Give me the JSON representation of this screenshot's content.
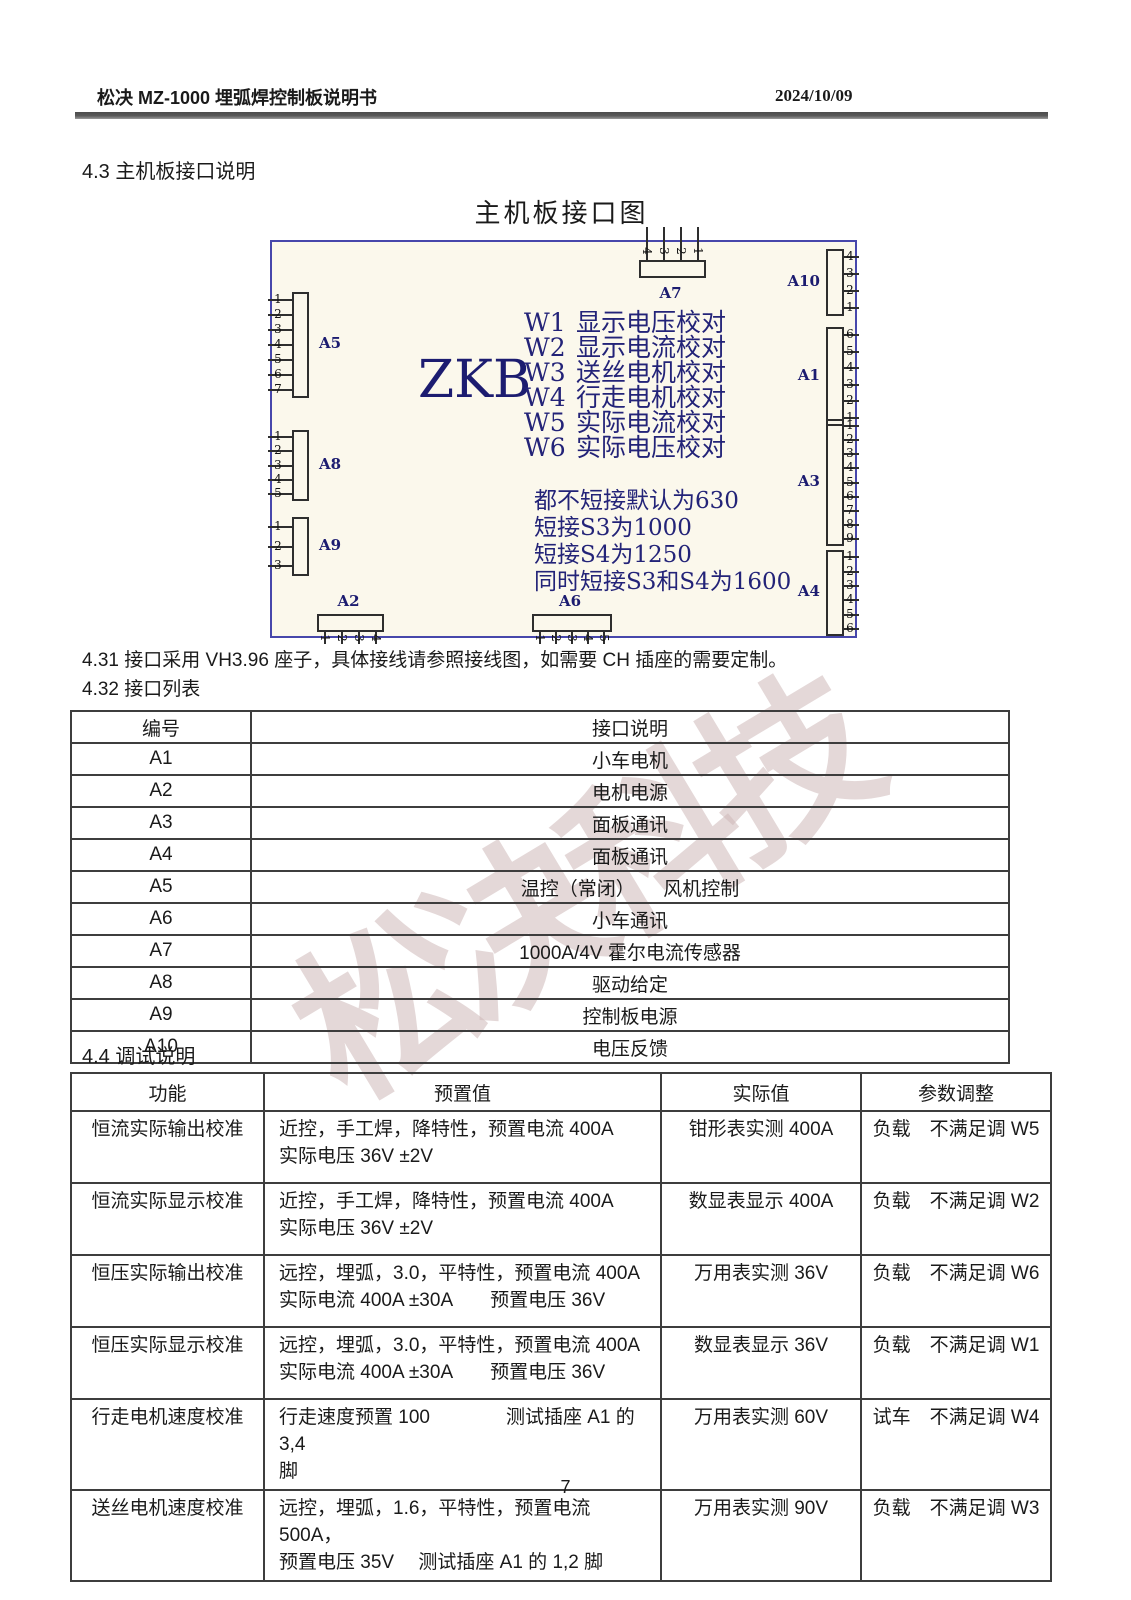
{
  "header": {
    "title": "松决 MZ-1000 埋弧焊控制板说明书",
    "date": "2024/10/09"
  },
  "sections": {
    "s43": "4.3 主机板接口说明",
    "s431": "4.31 接口采用 VH3.96 座子，具体接线请参照接线图，如需要 CH 插座的需要定制。",
    "s432": "4.32 接口列表",
    "s44": "4.4 调试说明"
  },
  "diagram": {
    "title": "主机板接口图",
    "board_label": "ZKB",
    "w_list": [
      {
        "id": "W1",
        "desc": "显示电压校对"
      },
      {
        "id": "W2",
        "desc": "显示电流校对"
      },
      {
        "id": "W3",
        "desc": "送丝电机校对"
      },
      {
        "id": "W4",
        "desc": "行走电机校对"
      },
      {
        "id": "W5",
        "desc": "实际电流校对"
      },
      {
        "id": "W6",
        "desc": "实际电压校对"
      }
    ],
    "jumper_notes": [
      "都不短接默认为630",
      "短接S3为1000",
      "短接S4为1250",
      "同时短接S3和S4为1600"
    ],
    "connectors": [
      {
        "id": "A5",
        "side": "left",
        "pins": [
          "1",
          "2",
          "3",
          "4",
          "5",
          "6",
          "7"
        ]
      },
      {
        "id": "A8",
        "side": "left",
        "pins": [
          "1",
          "2",
          "3",
          "4",
          "5"
        ]
      },
      {
        "id": "A9",
        "side": "left",
        "pins": [
          "1",
          "2",
          "3"
        ]
      },
      {
        "id": "A7",
        "side": "top",
        "pins": [
          "4",
          "3",
          "2",
          "1"
        ]
      },
      {
        "id": "A10",
        "side": "right",
        "pins": [
          "4",
          "3",
          "2",
          "1"
        ]
      },
      {
        "id": "A1",
        "side": "right",
        "pins": [
          "6",
          "5",
          "4",
          "3",
          "2",
          "1"
        ]
      },
      {
        "id": "A3",
        "side": "right",
        "pins": [
          "1",
          "2",
          "3",
          "4",
          "5",
          "6",
          "7",
          "8",
          "9"
        ]
      },
      {
        "id": "A4",
        "side": "right",
        "pins": [
          "1",
          "2",
          "3",
          "4",
          "5",
          "6"
        ]
      },
      {
        "id": "A2",
        "side": "bottom",
        "pins": [
          "1",
          "2",
          "3",
          "4"
        ]
      },
      {
        "id": "A6",
        "side": "bottom",
        "pins": [
          "1",
          "2",
          "3",
          "4",
          "5"
        ]
      }
    ]
  },
  "interface_table": {
    "headers": [
      "编号",
      "接口说明"
    ],
    "rows": [
      [
        "A1",
        "小车电机"
      ],
      [
        "A2",
        "电机电源"
      ],
      [
        "A3",
        "面板通讯"
      ],
      [
        "A4",
        "面板通讯"
      ],
      [
        "A5",
        "温控（常闭）　　风机控制"
      ],
      [
        "A6",
        "小车通讯"
      ],
      [
        "A7",
        "1000A/4V 霍尔电流传感器"
      ],
      [
        "A8",
        "驱动给定"
      ],
      [
        "A9",
        "控制板电源"
      ],
      [
        "A10",
        "电压反馈"
      ]
    ]
  },
  "debug_table": {
    "headers": [
      "功能",
      "预置值",
      "实际值",
      "参数调整"
    ],
    "rows": [
      [
        "恒流实际输出校准",
        "近控，手工焊，降特性，预置电流 400A\n实际电压 36V ±2V",
        "钳形表实测 400A",
        "负载　不满足调 W5"
      ],
      [
        "恒流实际显示校准",
        "近控，手工焊，降特性，预置电流 400A\n实际电压 36V ±2V",
        "数显表显示 400A",
        "负载　不满足调 W2"
      ],
      [
        "恒压实际输出校准",
        "远控，埋弧，3.0，平特性，预置电流 400A\n实际电流 400A ±30A　　预置电压 36V",
        "万用表实测 36V",
        "负载　不满足调 W6"
      ],
      [
        "恒压实际显示校准",
        "远控，埋弧，3.0，平特性，预置电流 400A\n实际电流 400A ±30A　　预置电压 36V",
        "数显表显示 36V",
        "负载　不满足调 W1"
      ],
      [
        "行走电机速度校准",
        "行走速度预置 100　　　　测试插座 A1 的 3,4\n脚",
        "万用表实测 60V",
        "试车　不满足调 W4"
      ],
      [
        "送丝电机速度校准",
        "远控，埋弧，1.6，平特性，预置电流 500A，\n预置电压 35V　 测试插座 A1 的 1,2 脚",
        "万用表实测 90V",
        "负载　不满足调 W3"
      ]
    ]
  },
  "watermark": "松决科技",
  "page_number": "7",
  "colors": {
    "board_border": "#4747ab",
    "board_bg": "#fbf8ec",
    "diagram_text": "#232378",
    "watermark": "#cdb8b8",
    "rule": "#4c4c4c"
  }
}
